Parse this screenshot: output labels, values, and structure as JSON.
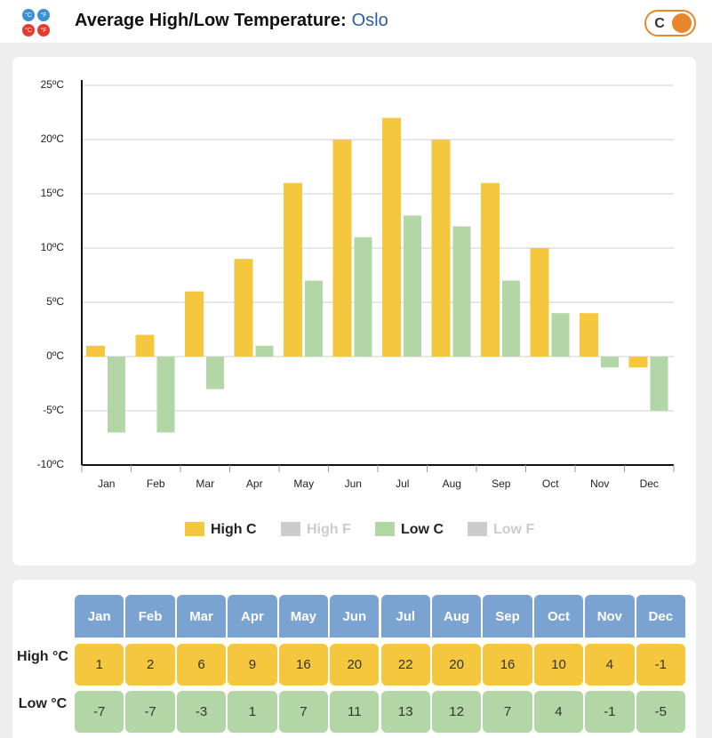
{
  "header": {
    "icon": [
      "°C",
      "°F",
      "°C",
      "°F"
    ],
    "title": "Average High/Low Temperature:",
    "city": "Oslo",
    "toggle": "C"
  },
  "chart_data": {
    "type": "bar",
    "categories": [
      "Jan",
      "Feb",
      "Mar",
      "Apr",
      "May",
      "Jun",
      "Jul",
      "Aug",
      "Sep",
      "Oct",
      "Nov",
      "Dec"
    ],
    "series": [
      {
        "name": "High C",
        "color": "#f5c73f",
        "values": [
          1,
          2,
          6,
          9,
          16,
          20,
          22,
          20,
          16,
          10,
          4,
          -1
        ]
      },
      {
        "name": "Low C",
        "color": "#b3d6a6",
        "values": [
          -7,
          -7,
          -3,
          1,
          7,
          11,
          13,
          12,
          7,
          4,
          -1,
          -5
        ]
      }
    ],
    "legend": [
      {
        "name": "High C",
        "color": "#f5c73f",
        "hidden": false
      },
      {
        "name": "High F",
        "color": "#cccccc",
        "hidden": true
      },
      {
        "name": "Low C",
        "color": "#b3d6a6",
        "hidden": false
      },
      {
        "name": "Low F",
        "color": "#cccccc",
        "hidden": true
      }
    ],
    "ylim": [
      -10,
      25
    ],
    "yticks": [
      {
        "value": -10,
        "label": "-10ºC"
      },
      {
        "value": -5,
        "label": "-5ºC"
      },
      {
        "value": 0,
        "label": "0ºC"
      },
      {
        "value": 5,
        "label": "5ºC"
      },
      {
        "value": 10,
        "label": "10ºC"
      },
      {
        "value": 15,
        "label": "15ºC"
      },
      {
        "value": 20,
        "label": "20ºC"
      },
      {
        "value": 25,
        "label": "25ºC"
      }
    ],
    "grid": true
  },
  "table": {
    "row_labels": [
      "High °C",
      "Low °C"
    ]
  }
}
